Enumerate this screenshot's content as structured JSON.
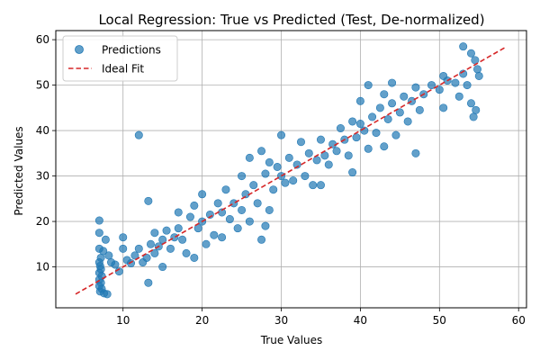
{
  "chart_data": {
    "type": "scatter",
    "title": "Local Regression: True vs Predicted (Test, De-normalized)",
    "xlabel": "True Values",
    "ylabel": "Predicted Values",
    "xlim": [
      1.5,
      61.0
    ],
    "ylim": [
      1.0,
      62.0
    ],
    "xticks": [
      10,
      20,
      30,
      40,
      50,
      60
    ],
    "yticks": [
      10,
      20,
      30,
      40,
      50,
      60
    ],
    "grid": true,
    "legend_position": "top-left",
    "series": [
      {
        "name": "Predictions",
        "kind": "scatter",
        "color": "#1f77b4",
        "points": [
          [
            7.0,
            20.2
          ],
          [
            7.0,
            17.5
          ],
          [
            7.0,
            14.0
          ],
          [
            7.2,
            12.0
          ],
          [
            7.0,
            11.0
          ],
          [
            7.1,
            10.2
          ],
          [
            7.2,
            9.5
          ],
          [
            7.0,
            8.7
          ],
          [
            7.3,
            8.0
          ],
          [
            7.0,
            7.2
          ],
          [
            7.2,
            6.5
          ],
          [
            7.0,
            5.8
          ],
          [
            7.3,
            5.2
          ],
          [
            7.1,
            4.6
          ],
          [
            7.6,
            4.2
          ],
          [
            8.0,
            4.0
          ],
          [
            7.8,
            16.0
          ],
          [
            7.5,
            13.5
          ],
          [
            8.2,
            12.5
          ],
          [
            8.5,
            11.0
          ],
          [
            9.0,
            10.5
          ],
          [
            9.5,
            9.0
          ],
          [
            10.0,
            16.5
          ],
          [
            10.0,
            14.0
          ],
          [
            10.5,
            11.5
          ],
          [
            11.0,
            10.8
          ],
          [
            11.5,
            12.5
          ],
          [
            12.0,
            39.0
          ],
          [
            12.0,
            14.0
          ],
          [
            12.5,
            11.0
          ],
          [
            13.0,
            12.0
          ],
          [
            13.2,
            6.5
          ],
          [
            13.2,
            24.5
          ],
          [
            13.5,
            15.0
          ],
          [
            14.0,
            13.0
          ],
          [
            14.0,
            17.5
          ],
          [
            14.5,
            14.5
          ],
          [
            15.0,
            10.0
          ],
          [
            15.0,
            16.0
          ],
          [
            15.5,
            18.0
          ],
          [
            16.0,
            14.0
          ],
          [
            16.5,
            16.5
          ],
          [
            17.0,
            22.0
          ],
          [
            17.0,
            18.5
          ],
          [
            17.5,
            16.0
          ],
          [
            18.0,
            13.0
          ],
          [
            18.5,
            21.0
          ],
          [
            19.0,
            12.0
          ],
          [
            19.0,
            23.5
          ],
          [
            19.5,
            18.5
          ],
          [
            20.0,
            20.0
          ],
          [
            20.0,
            26.0
          ],
          [
            20.5,
            15.0
          ],
          [
            21.0,
            21.5
          ],
          [
            21.5,
            17.0
          ],
          [
            22.0,
            24.0
          ],
          [
            22.5,
            16.5
          ],
          [
            22.5,
            22.0
          ],
          [
            23.0,
            27.0
          ],
          [
            23.5,
            20.5
          ],
          [
            24.0,
            24.0
          ],
          [
            24.5,
            18.5
          ],
          [
            25.0,
            22.5
          ],
          [
            25.0,
            30.0
          ],
          [
            25.5,
            26.0
          ],
          [
            26.0,
            34.0
          ],
          [
            26.0,
            20.0
          ],
          [
            26.5,
            28.0
          ],
          [
            27.0,
            24.0
          ],
          [
            27.5,
            16.0
          ],
          [
            27.5,
            35.5
          ],
          [
            28.0,
            19.0
          ],
          [
            28.0,
            30.5
          ],
          [
            28.5,
            22.5
          ],
          [
            28.5,
            33.0
          ],
          [
            29.0,
            27.0
          ],
          [
            29.5,
            32.0
          ],
          [
            30.0,
            30.0
          ],
          [
            30.0,
            39.0
          ],
          [
            30.5,
            28.5
          ],
          [
            31.0,
            34.0
          ],
          [
            31.5,
            29.0
          ],
          [
            32.0,
            32.5
          ],
          [
            32.5,
            37.5
          ],
          [
            33.0,
            30.0
          ],
          [
            33.5,
            35.0
          ],
          [
            34.0,
            28.0
          ],
          [
            34.5,
            33.5
          ],
          [
            35.0,
            28.0
          ],
          [
            35.0,
            38.0
          ],
          [
            35.5,
            34.5
          ],
          [
            36.0,
            32.5
          ],
          [
            36.5,
            37.0
          ],
          [
            37.0,
            35.5
          ],
          [
            37.5,
            40.5
          ],
          [
            38.0,
            38.0
          ],
          [
            38.5,
            34.5
          ],
          [
            39.0,
            30.8
          ],
          [
            39.0,
            42.0
          ],
          [
            39.5,
            38.5
          ],
          [
            40.0,
            41.5
          ],
          [
            40.0,
            46.5
          ],
          [
            40.5,
            40.0
          ],
          [
            41.0,
            36.0
          ],
          [
            41.0,
            50.0
          ],
          [
            41.5,
            43.0
          ],
          [
            42.0,
            39.5
          ],
          [
            42.5,
            45.0
          ],
          [
            43.0,
            36.5
          ],
          [
            43.0,
            48.0
          ],
          [
            43.5,
            42.5
          ],
          [
            44.0,
            46.0
          ],
          [
            44.0,
            50.5
          ],
          [
            44.5,
            39.0
          ],
          [
            45.0,
            44.0
          ],
          [
            45.5,
            47.5
          ],
          [
            46.0,
            42.0
          ],
          [
            46.5,
            46.5
          ],
          [
            47.0,
            35.0
          ],
          [
            47.0,
            49.5
          ],
          [
            47.5,
            44.5
          ],
          [
            48.0,
            48.0
          ],
          [
            49.0,
            50.0
          ],
          [
            50.0,
            49.0
          ],
          [
            50.5,
            45.0
          ],
          [
            50.5,
            52.0
          ],
          [
            51.0,
            51.0
          ],
          [
            52.0,
            50.5
          ],
          [
            52.5,
            47.5
          ],
          [
            53.0,
            58.5
          ],
          [
            53.0,
            52.5
          ],
          [
            53.5,
            50.0
          ],
          [
            54.0,
            57.0
          ],
          [
            54.0,
            46.0
          ],
          [
            54.3,
            43.0
          ],
          [
            54.6,
            44.5
          ],
          [
            54.5,
            55.5
          ],
          [
            54.8,
            53.5
          ],
          [
            55.0,
            52.0
          ]
        ]
      },
      {
        "name": "Ideal Fit",
        "kind": "line",
        "style": "dashed",
        "color": "#d62728",
        "points": [
          [
            4.0,
            4.0
          ],
          [
            58.5,
            58.5
          ]
        ]
      }
    ]
  }
}
